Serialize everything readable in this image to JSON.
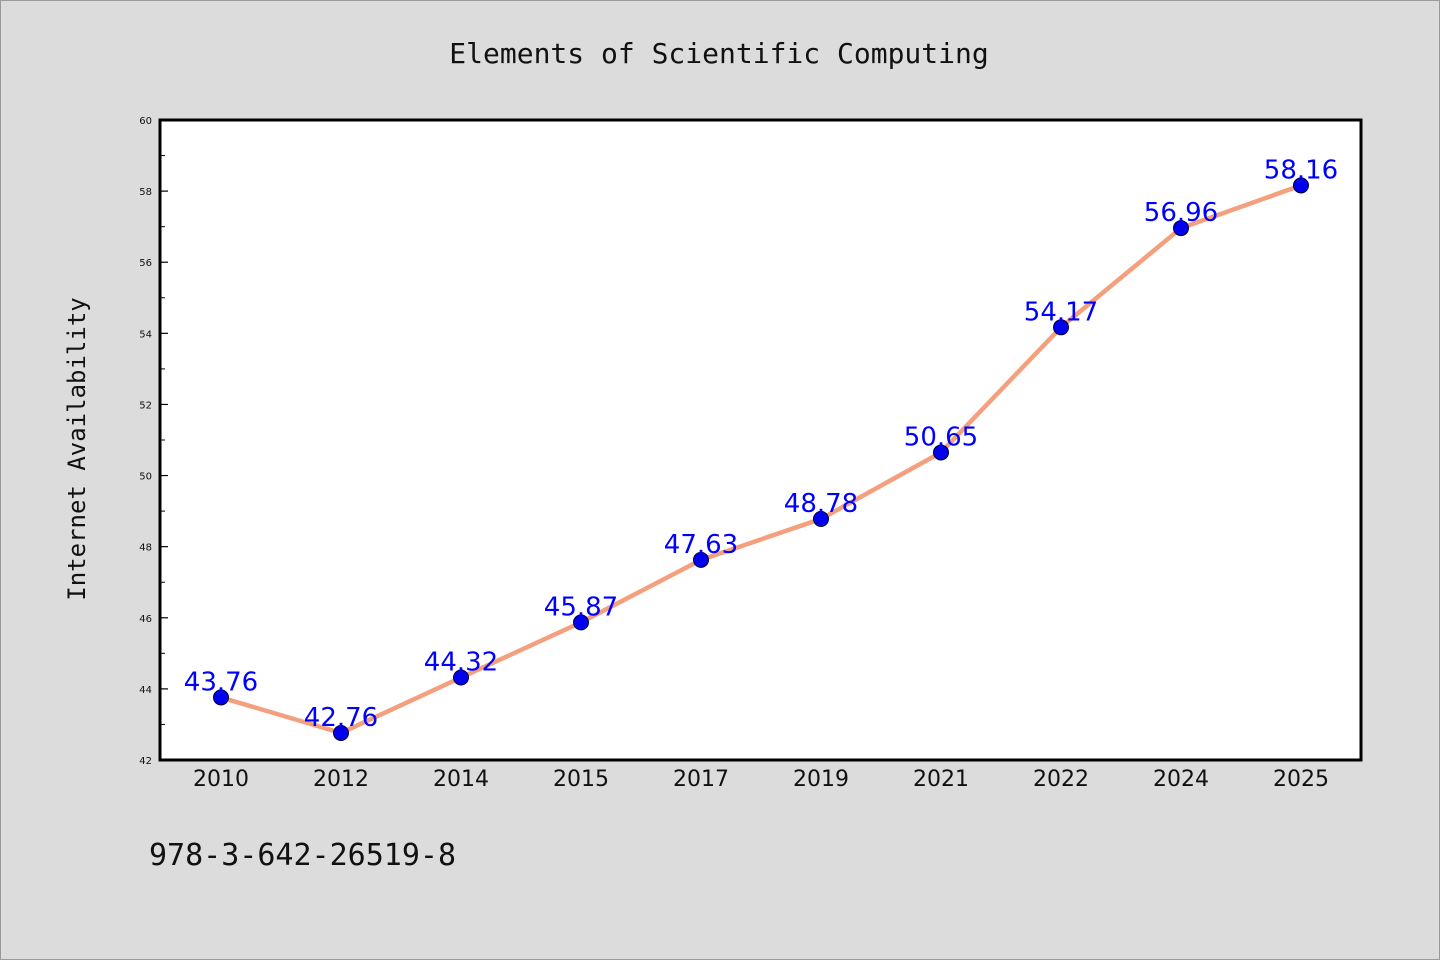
{
  "chart_data": {
    "type": "line",
    "title": "Elements of Scientific Computing",
    "xlabel": "",
    "ylabel": "Internet Availability",
    "categories": [
      "2010",
      "2012",
      "2014",
      "2015",
      "2017",
      "2019",
      "2021",
      "2022",
      "2024",
      "2025"
    ],
    "series": [
      {
        "values": [
          43.76,
          42.76,
          44.32,
          45.87,
          47.63,
          48.78,
          50.65,
          54.17,
          56.96,
          58.16
        ],
        "labels": [
          "43.76",
          "42.76",
          "44.32",
          "45.87",
          "47.63",
          "48.78",
          "50.65",
          "54.17",
          "56.96",
          "58.16"
        ],
        "line_color": "#f4a07f",
        "marker_color": "#0000ee",
        "label_color": "#0000ff"
      }
    ],
    "ylim": [
      42,
      60
    ],
    "yticks": [
      "42",
      "44",
      "46",
      "48",
      "50",
      "52",
      "54",
      "56",
      "58",
      "60"
    ],
    "grid": false,
    "legend": "none"
  },
  "footer": {
    "isbn": "978-3-642-26519-8"
  },
  "colors": {
    "background": "#dcdcdc",
    "plot_background": "#ffffff",
    "axis": "#000000"
  }
}
